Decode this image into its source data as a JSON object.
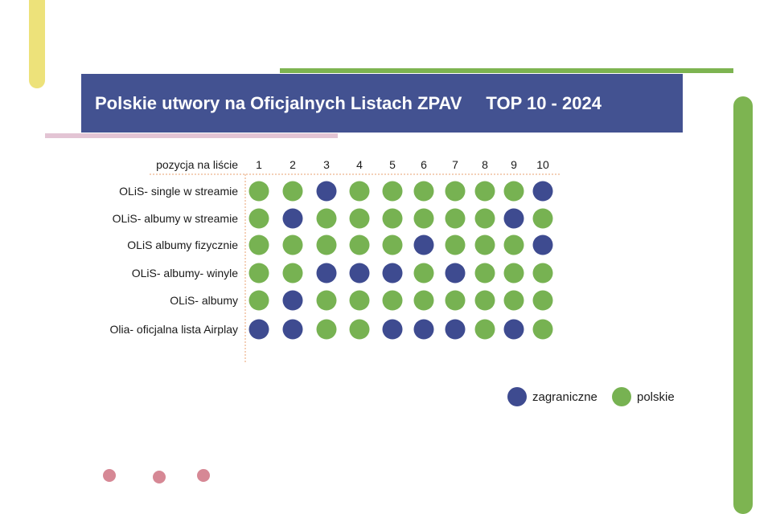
{
  "title": {
    "main": "Polskie utwory na Oficjalnych Listach ZPAV",
    "sub": "TOP 10 - 2024"
  },
  "colors": {
    "banner": "#435291",
    "foreign": "#3e4b90",
    "polish": "#77b252",
    "divider": "#e8a070"
  },
  "chart_data": {
    "type": "table",
    "header_label": "pozycja na liście",
    "columns": [
      "1",
      "2",
      "3",
      "4",
      "5",
      "6",
      "7",
      "8",
      "9",
      "10"
    ],
    "rows": [
      {
        "label": "OLiS- single w streamie",
        "values": [
          "polskie",
          "polskie",
          "zagraniczne",
          "polskie",
          "polskie",
          "polskie",
          "polskie",
          "polskie",
          "polskie",
          "zagraniczne"
        ]
      },
      {
        "label": "OLiS- albumy w streamie",
        "values": [
          "polskie",
          "zagraniczne",
          "polskie",
          "polskie",
          "polskie",
          "polskie",
          "polskie",
          "polskie",
          "zagraniczne",
          "polskie"
        ]
      },
      {
        "label": "OLiS albumy fizycznie",
        "values": [
          "polskie",
          "polskie",
          "polskie",
          "polskie",
          "polskie",
          "zagraniczne",
          "polskie",
          "polskie",
          "polskie",
          "zagraniczne"
        ]
      },
      {
        "label": "OLiS- albumy- winyle",
        "values": [
          "polskie",
          "polskie",
          "zagraniczne",
          "zagraniczne",
          "zagraniczne",
          "polskie",
          "zagraniczne",
          "polskie",
          "polskie",
          "polskie"
        ]
      },
      {
        "label": "OLiS- albumy",
        "values": [
          "polskie",
          "zagraniczne",
          "polskie",
          "polskie",
          "polskie",
          "polskie",
          "polskie",
          "polskie",
          "polskie",
          "polskie"
        ]
      },
      {
        "label": "Olia- oficjalna lista Airplay",
        "values": [
          "zagraniczne",
          "zagraniczne",
          "polskie",
          "polskie",
          "zagraniczne",
          "zagraniczne",
          "zagraniczne",
          "polskie",
          "zagraniczne",
          "polskie"
        ]
      }
    ],
    "legend": [
      {
        "key": "zagraniczne",
        "label": "zagraniczne",
        "color": "#3e4b90"
      },
      {
        "key": "polskie",
        "label": "polskie",
        "color": "#77b252"
      }
    ],
    "legend_position": "bottom-right"
  }
}
